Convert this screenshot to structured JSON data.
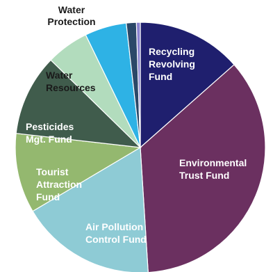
{
  "chart_data": {
    "type": "pie",
    "start_angle_deg": 0,
    "direction": "clockwise",
    "slices": [
      {
        "label": "Recycling Revolving Fund",
        "value": 13.5,
        "color": "#1f1f6e",
        "label_color": "#ffffff"
      },
      {
        "label": "Environmental Trust Fund",
        "value": 35.5,
        "color": "#6b3060",
        "label_color": "#ffffff"
      },
      {
        "label": "Air Pollution Control Fund",
        "value": 17.5,
        "color": "#8ecbd5",
        "label_color": "#ffffff"
      },
      {
        "label": "Tourist Attraction Fund",
        "value": 10.3,
        "color": "#94b86f",
        "label_color": "#ffffff"
      },
      {
        "label": "Pesticides Mgt. Fund",
        "value": 10.5,
        "color": "#405c4c",
        "label_color": "#ffffff"
      },
      {
        "label": "Water Resources",
        "value": 5.5,
        "color": "#b2dcbd",
        "label_color": "#1a1a1a"
      },
      {
        "label": "Water Protection",
        "value": 5.4,
        "color": "#2eb2e5",
        "label_color": "#1a1a1a"
      },
      {
        "label": "",
        "value": 1.3,
        "color": "#2b4868",
        "label_color": "#ffffff"
      },
      {
        "label": "",
        "value": 0.5,
        "color": "#8a83d0",
        "label_color": "#ffffff"
      }
    ]
  }
}
